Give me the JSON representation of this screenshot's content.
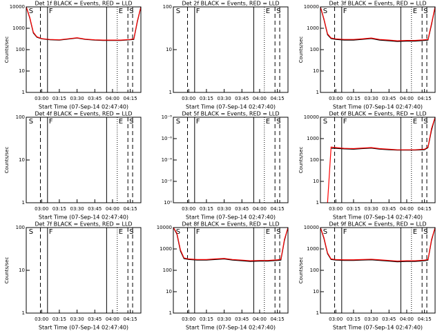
{
  "chart_data": [
    {
      "type": "line",
      "title": "Det 1f BLACK = Events, RED = LLD",
      "xlabel": "Start Time (07-Sep-14 02:47:40)",
      "ylabel": "Counts/sec",
      "log_y": true,
      "xlim": [
        "02:47",
        "04:24"
      ],
      "xticks": [
        "03:00",
        "03:15",
        "03:30",
        "03:45",
        "04:00",
        "04:15"
      ],
      "ylim": [
        1,
        10000
      ],
      "yticks": [
        1,
        10,
        100,
        1000,
        10000
      ],
      "x": [
        "02:47",
        "02:50",
        "02:53",
        "02:56",
        "03:00",
        "03:07",
        "03:15",
        "03:22",
        "03:30",
        "03:37",
        "03:45",
        "03:52",
        "04:00",
        "04:07",
        "04:15",
        "04:18",
        "04:21",
        "04:24"
      ],
      "series": [
        {
          "name": "Events",
          "color": "#000000",
          "values": [
            10000,
            3000,
            600,
            380,
            320,
            290,
            280,
            310,
            350,
            300,
            280,
            270,
            270,
            270,
            290,
            300,
            2000,
            10000
          ]
        },
        {
          "name": "LLD",
          "color": "#ff0000",
          "values": [
            10000,
            3200,
            650,
            400,
            330,
            300,
            290,
            320,
            360,
            310,
            290,
            280,
            280,
            280,
            300,
            320,
            2200,
            10000
          ]
        }
      ],
      "markers": [
        {
          "x": "02:48",
          "style": "none",
          "label": "S"
        },
        {
          "x": "02:59",
          "style": "dashed"
        },
        {
          "x": "03:05",
          "style": "solid",
          "label": "F"
        },
        {
          "x": "03:55",
          "style": "solid"
        },
        {
          "x": "04:04",
          "style": "dotted",
          "label": "E"
        },
        {
          "x": "04:13",
          "style": "dashed",
          "label": "S"
        },
        {
          "x": "04:17",
          "style": "dashed"
        }
      ]
    },
    {
      "type": "line",
      "title": "Det 2f BLACK = Events, RED = LLD",
      "xlabel": "Start Time (07-Sep-14 02:47:40)",
      "log_y": true,
      "xlim": [
        "02:47",
        "04:24"
      ],
      "xticks": [
        "03:00",
        "03:15",
        "03:30",
        "03:45",
        "04:00",
        "04:15"
      ],
      "ylim": [
        1,
        100
      ],
      "yticks": [
        1,
        10,
        100
      ],
      "markers": [
        {
          "x": "02:48",
          "style": "none",
          "label": "S"
        },
        {
          "x": "02:59",
          "style": "dashed"
        },
        {
          "x": "03:05",
          "style": "solid",
          "label": "F"
        },
        {
          "x": "03:55",
          "style": "solid"
        },
        {
          "x": "04:04",
          "style": "dotted",
          "label": "E"
        },
        {
          "x": "04:13",
          "style": "dashed",
          "label": "S"
        },
        {
          "x": "04:17",
          "style": "dashed"
        }
      ]
    },
    {
      "type": "line",
      "title": "Det 3f BLACK = Events, RED = LLD",
      "xlabel": "Start Time (07-Sep-14 02:47:40)",
      "ylabel": "Counts/sec",
      "log_y": true,
      "xlim": [
        "02:47",
        "04:24"
      ],
      "xticks": [
        "03:00",
        "03:15",
        "03:30",
        "03:45",
        "04:00",
        "04:15"
      ],
      "ylim": [
        1,
        10000
      ],
      "yticks": [
        1,
        10,
        100,
        1000,
        10000
      ],
      "x": [
        "02:47",
        "02:50",
        "02:53",
        "02:56",
        "03:00",
        "03:07",
        "03:15",
        "03:22",
        "03:30",
        "03:37",
        "03:45",
        "03:52",
        "04:00",
        "04:07",
        "04:15",
        "04:18",
        "04:21",
        "04:24"
      ],
      "series": [
        {
          "name": "Events",
          "color": "#000000",
          "values": [
            10000,
            2500,
            500,
            330,
            300,
            280,
            280,
            300,
            330,
            280,
            260,
            240,
            250,
            250,
            270,
            280,
            1500,
            10000
          ]
        },
        {
          "name": "LLD",
          "color": "#ff0000",
          "values": [
            10000,
            2700,
            550,
            350,
            320,
            300,
            300,
            320,
            350,
            300,
            280,
            260,
            270,
            270,
            290,
            300,
            1700,
            10000
          ]
        }
      ],
      "markers": [
        {
          "x": "02:48",
          "style": "none",
          "label": "S"
        },
        {
          "x": "02:59",
          "style": "dashed"
        },
        {
          "x": "03:05",
          "style": "solid",
          "label": "F"
        },
        {
          "x": "03:55",
          "style": "solid"
        },
        {
          "x": "04:04",
          "style": "dotted",
          "label": "E"
        },
        {
          "x": "04:13",
          "style": "dashed",
          "label": "S"
        },
        {
          "x": "04:17",
          "style": "dashed"
        }
      ]
    },
    {
      "type": "line",
      "title": "Det 4f BLACK = Events, RED = LLD",
      "xlabel": "Start Time (07-Sep-14 02:47:40)",
      "ylabel": "Counts/sec",
      "log_y": true,
      "xlim": [
        "02:47",
        "04:24"
      ],
      "xticks": [
        "03:00",
        "03:15",
        "03:30",
        "03:45",
        "04:00",
        "04:15"
      ],
      "ylim": [
        1,
        100
      ],
      "yticks": [
        1,
        10,
        100
      ],
      "markers": [
        {
          "x": "02:48",
          "style": "none",
          "label": "S"
        },
        {
          "x": "02:59",
          "style": "dashed"
        },
        {
          "x": "03:05",
          "style": "solid",
          "label": "F"
        },
        {
          "x": "03:55",
          "style": "solid"
        },
        {
          "x": "04:04",
          "style": "dotted",
          "label": "E"
        },
        {
          "x": "04:13",
          "style": "dashed",
          "label": "S"
        },
        {
          "x": "04:17",
          "style": "dashed"
        }
      ]
    },
    {
      "type": "line",
      "title": "Det 5f BLACK = Events, RED = LLD",
      "xlabel": "Start Time (07-Sep-14 02:47:40)",
      "log_y": true,
      "xlim": [
        "02:47",
        "04:24"
      ],
      "xticks": [
        "03:00",
        "03:15",
        "03:30",
        "03:45",
        "04:00",
        "04:15"
      ],
      "ylim": [
        1,
        1e-08
      ],
      "yticks": [
        {
          "value": 1e-08,
          "label": "10⁻⁸"
        },
        {
          "value": 1e-06,
          "label": "10⁻⁶"
        },
        {
          "value": 0.0001,
          "label": "10⁻⁴"
        },
        {
          "value": 0.01,
          "label": "10⁻²"
        },
        {
          "value": 1,
          "label": "10⁰"
        }
      ],
      "markers": [
        {
          "x": "02:48",
          "style": "none",
          "label": "S"
        },
        {
          "x": "02:59",
          "style": "dashed"
        },
        {
          "x": "03:05",
          "style": "solid",
          "label": "F"
        },
        {
          "x": "03:55",
          "style": "solid"
        },
        {
          "x": "04:04",
          "style": "dotted",
          "label": "E"
        },
        {
          "x": "04:13",
          "style": "dashed",
          "label": "S"
        },
        {
          "x": "04:17",
          "style": "dashed"
        }
      ]
    },
    {
      "type": "line",
      "title": "Det 6f BLACK = Events, RED = LLD",
      "xlabel": "Start Time (07-Sep-14 02:47:40)",
      "ylabel": "Counts/sec",
      "log_y": true,
      "xlim": [
        "02:47",
        "04:24"
      ],
      "xticks": [
        "03:00",
        "03:15",
        "03:30",
        "03:45",
        "04:00",
        "04:15"
      ],
      "ylim": [
        1,
        10000
      ],
      "yticks": [
        1,
        10,
        100,
        1000,
        10000
      ],
      "x": [
        "02:47",
        "02:50",
        "02:53",
        "02:56",
        "03:00",
        "03:07",
        "03:15",
        "03:22",
        "03:30",
        "03:37",
        "03:45",
        "03:52",
        "04:00",
        "04:07",
        "04:15",
        "04:18",
        "04:21",
        "04:24"
      ],
      "series": [
        {
          "name": "Events",
          "color": "#000000",
          "values": [
            null,
            null,
            null,
            350,
            350,
            330,
            320,
            340,
            360,
            320,
            300,
            290,
            290,
            290,
            300,
            380,
            2500,
            10000
          ]
        },
        {
          "name": "LLD",
          "color": "#ff0000",
          "values": [
            null,
            null,
            1,
            400,
            380,
            350,
            340,
            360,
            380,
            340,
            320,
            300,
            300,
            300,
            320,
            400,
            3000,
            10000
          ]
        }
      ],
      "markers": [
        {
          "x": "02:48",
          "style": "none",
          "label": "S"
        },
        {
          "x": "02:59",
          "style": "dashed"
        },
        {
          "x": "03:05",
          "style": "solid",
          "label": "F"
        },
        {
          "x": "03:55",
          "style": "solid"
        },
        {
          "x": "04:04",
          "style": "dotted",
          "label": "E"
        },
        {
          "x": "04:13",
          "style": "dashed",
          "label": "S"
        },
        {
          "x": "04:17",
          "style": "dashed"
        }
      ]
    },
    {
      "type": "line",
      "title": "Det 7f BLACK = Events, RED = LLD",
      "xlabel": "Start Time (07-Sep-14 02:47:40)",
      "ylabel": "Counts/sec",
      "log_y": true,
      "xlim": [
        "02:47",
        "04:24"
      ],
      "xticks": [
        "03:00",
        "03:15",
        "03:30",
        "03:45",
        "04:00",
        "04:15"
      ],
      "ylim": [
        1,
        100
      ],
      "yticks": [
        1,
        10,
        100
      ],
      "markers": [
        {
          "x": "02:48",
          "style": "none",
          "label": "S"
        },
        {
          "x": "02:59",
          "style": "dashed"
        },
        {
          "x": "03:05",
          "style": "solid",
          "label": "F"
        },
        {
          "x": "03:55",
          "style": "solid"
        },
        {
          "x": "04:04",
          "style": "dotted",
          "label": "E"
        },
        {
          "x": "04:13",
          "style": "dashed",
          "label": "S"
        },
        {
          "x": "04:17",
          "style": "dashed"
        }
      ]
    },
    {
      "type": "line",
      "title": "Det 8f BLACK = Events, RED = LLD",
      "xlabel": "Start Time (07-Sep-14 02:47:40)",
      "log_y": true,
      "xlim": [
        "02:47",
        "04:24"
      ],
      "xticks": [
        "03:00",
        "03:15",
        "03:30",
        "03:45",
        "04:00",
        "04:15"
      ],
      "ylim": [
        1,
        10000
      ],
      "yticks": [
        1,
        10,
        100,
        1000,
        10000
      ],
      "x": [
        "02:47",
        "02:50",
        "02:53",
        "02:56",
        "03:00",
        "03:07",
        "03:15",
        "03:22",
        "03:30",
        "03:37",
        "03:45",
        "03:52",
        "04:00",
        "04:07",
        "04:15",
        "04:18",
        "04:21",
        "04:24"
      ],
      "series": [
        {
          "name": "Events",
          "color": "#000000",
          "values": [
            10000,
            5000,
            800,
            350,
            320,
            300,
            300,
            320,
            340,
            300,
            280,
            260,
            270,
            270,
            290,
            300,
            2500,
            10000
          ]
        },
        {
          "name": "LLD",
          "color": "#ff0000",
          "values": [
            10000,
            5500,
            900,
            380,
            340,
            320,
            320,
            340,
            360,
            320,
            300,
            280,
            290,
            290,
            310,
            330,
            2800,
            10000
          ]
        }
      ],
      "markers": [
        {
          "x": "02:48",
          "style": "none",
          "label": "S"
        },
        {
          "x": "02:59",
          "style": "dashed"
        },
        {
          "x": "03:05",
          "style": "solid",
          "label": "F"
        },
        {
          "x": "03:55",
          "style": "solid"
        },
        {
          "x": "04:04",
          "style": "dotted",
          "label": "E"
        },
        {
          "x": "04:13",
          "style": "dashed",
          "label": "S"
        },
        {
          "x": "04:17",
          "style": "dashed"
        }
      ]
    },
    {
      "type": "line",
      "title": "Det 9f BLACK = Events, RED = LLD",
      "xlabel": "Start Time (07-Sep-14 02:47:40)",
      "ylabel": "Counts/sec",
      "log_y": true,
      "xlim": [
        "02:47",
        "04:24"
      ],
      "xticks": [
        "03:00",
        "03:15",
        "03:30",
        "03:45",
        "04:00",
        "04:15"
      ],
      "ylim": [
        1,
        10000
      ],
      "yticks": [
        1,
        10,
        100,
        1000,
        10000
      ],
      "x": [
        "02:47",
        "02:50",
        "02:53",
        "02:56",
        "03:00",
        "03:07",
        "03:15",
        "03:22",
        "03:30",
        "03:37",
        "03:45",
        "03:52",
        "04:00",
        "04:07",
        "04:15",
        "04:18",
        "04:21",
        "04:24"
      ],
      "series": [
        {
          "name": "Events",
          "color": "#000000",
          "values": [
            10000,
            3000,
            600,
            320,
            300,
            290,
            290,
            300,
            310,
            290,
            270,
            250,
            260,
            260,
            280,
            300,
            2500,
            10000
          ]
        },
        {
          "name": "LLD",
          "color": "#ff0000",
          "values": [
            10000,
            3300,
            650,
            340,
            320,
            310,
            310,
            320,
            330,
            310,
            290,
            270,
            280,
            280,
            300,
            320,
            2800,
            10000
          ]
        }
      ],
      "markers": [
        {
          "x": "02:48",
          "style": "none",
          "label": "S"
        },
        {
          "x": "02:59",
          "style": "dashed"
        },
        {
          "x": "03:05",
          "style": "solid",
          "label": "F"
        },
        {
          "x": "03:55",
          "style": "solid"
        },
        {
          "x": "04:04",
          "style": "dotted",
          "label": "E"
        },
        {
          "x": "04:13",
          "style": "dashed",
          "label": "S"
        },
        {
          "x": "04:17",
          "style": "dashed"
        }
      ]
    }
  ]
}
